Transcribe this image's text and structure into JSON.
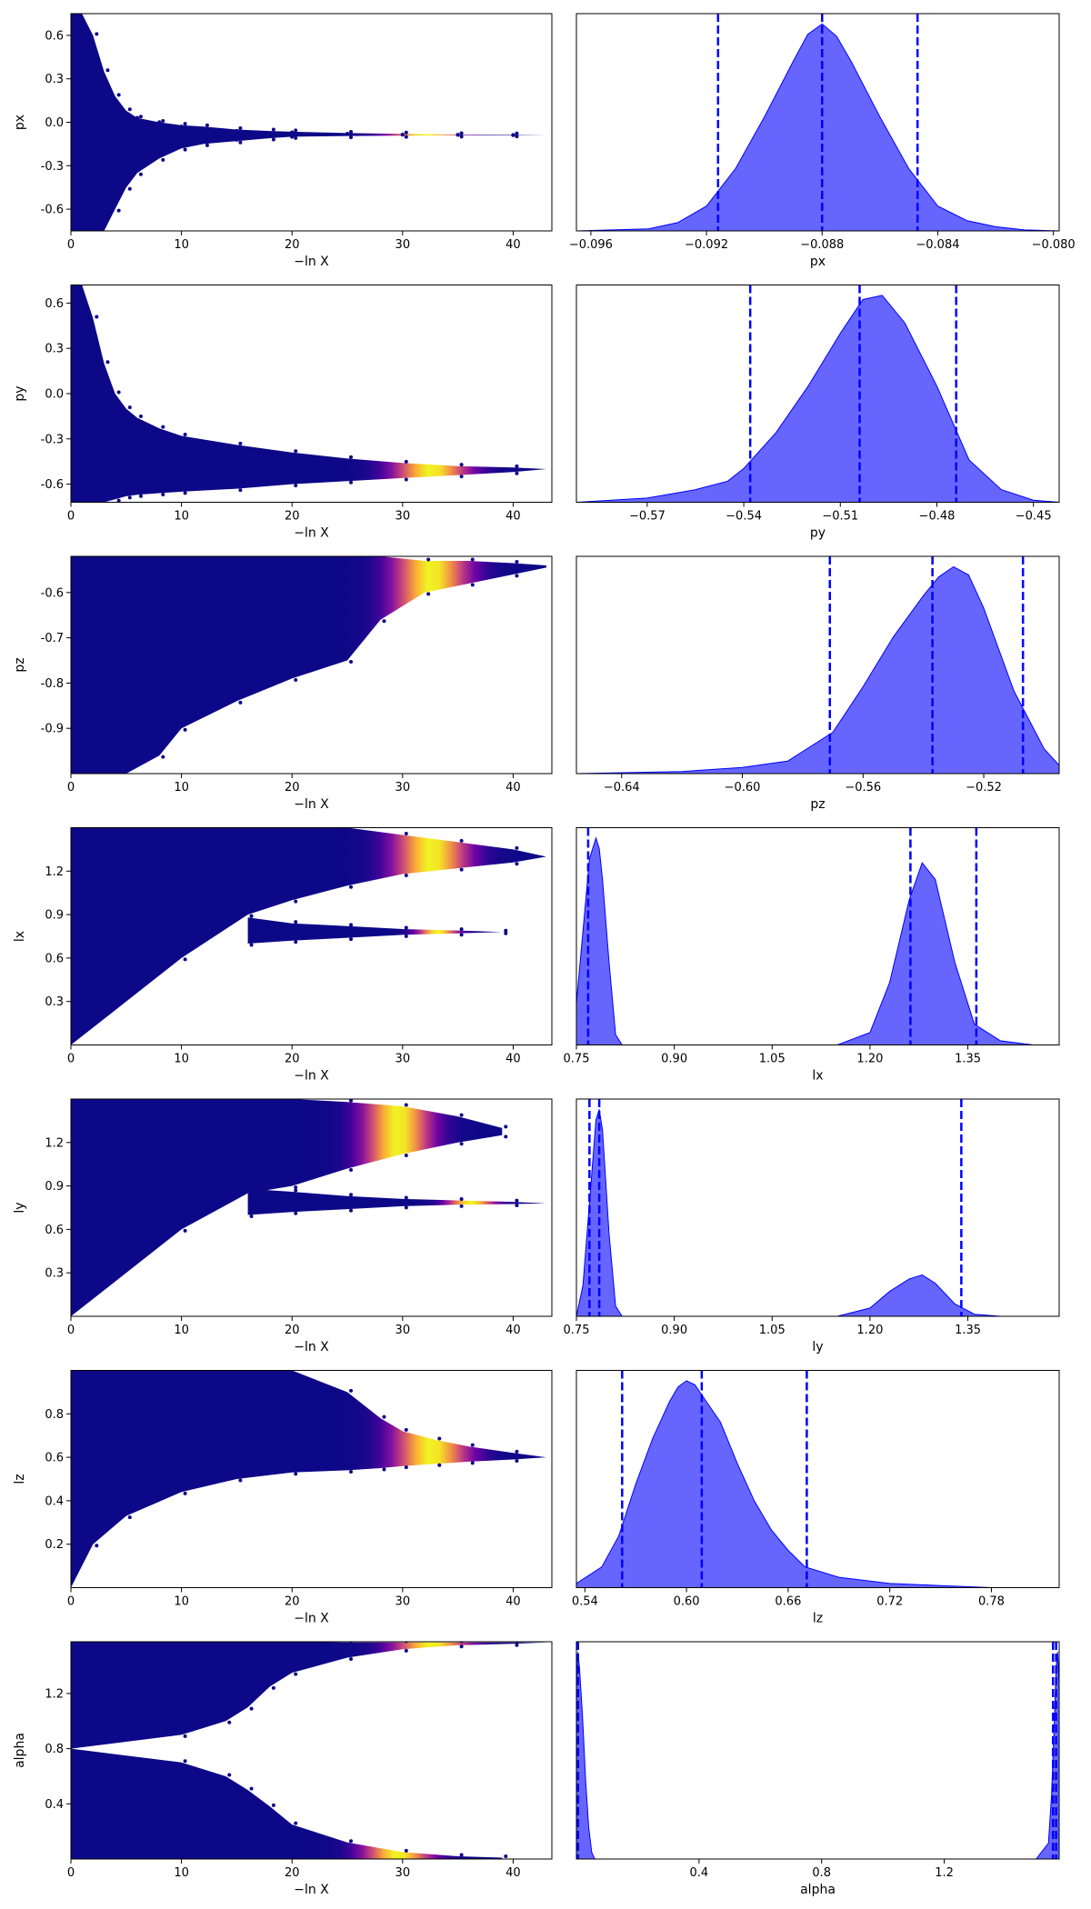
{
  "figure": {
    "type": "nested-sampling trace plot"
  },
  "style": {
    "trace_colormap": [
      "#0d0887",
      "#6a00a8",
      "#b12a90",
      "#e16462",
      "#fca636",
      "#f0f921"
    ],
    "posterior_fill": "#0000ff",
    "posterior_fill_opacity": 0.6,
    "quantile_line_color": "#0000ff",
    "quantile_line_style": "dashed"
  },
  "chart_data": [
    {
      "type": "scatter",
      "parameter": "px",
      "xlabel": "−ln X",
      "ylabel": "px",
      "xlim": [
        0,
        43.5
      ],
      "ylim": [
        -0.75,
        0.75
      ],
      "xticks": [
        "0",
        "10",
        "20",
        "30",
        "40"
      ],
      "yticks": [
        "-0.6",
        "-0.3",
        "0.0",
        "0.3",
        "0.6"
      ],
      "points": [
        [
          0.5,
          0.7
        ],
        [
          1.0,
          0.6
        ],
        [
          2.0,
          0.5
        ],
        [
          3.0,
          0.3
        ],
        [
          4.0,
          0.15
        ],
        [
          5.0,
          0.05
        ],
        [
          6.0,
          0.03
        ],
        [
          8.0,
          0.0
        ],
        [
          10.0,
          -0.03
        ],
        [
          15.0,
          -0.06
        ],
        [
          20.0,
          -0.07
        ],
        [
          25.0,
          -0.08
        ],
        [
          30.0,
          -0.085
        ],
        [
          35.0,
          -0.087
        ],
        [
          40.0,
          -0.088
        ],
        [
          3.0,
          -0.65
        ],
        [
          4.0,
          -0.45
        ],
        [
          6.0,
          -0.3
        ],
        [
          8.0,
          -0.2
        ],
        [
          10.0,
          -0.16
        ],
        [
          15.0,
          -0.12
        ],
        [
          20.0,
          -0.1
        ]
      ],
      "envelope": {
        "x": [
          0,
          1,
          2,
          3,
          4,
          5,
          6,
          8,
          10,
          12,
          15,
          18,
          20,
          25,
          30,
          35,
          40,
          43
        ],
        "upper": [
          0.75,
          0.75,
          0.6,
          0.35,
          0.18,
          0.08,
          0.03,
          0.0,
          -0.02,
          -0.03,
          -0.05,
          -0.06,
          -0.065,
          -0.075,
          -0.08,
          -0.085,
          -0.086,
          -0.088
        ],
        "lower": [
          -0.75,
          -0.75,
          -0.75,
          -0.75,
          -0.6,
          -0.45,
          -0.35,
          -0.25,
          -0.18,
          -0.15,
          -0.13,
          -0.11,
          -0.1,
          -0.095,
          -0.092,
          -0.09,
          -0.089,
          -0.088
        ]
      },
      "weight_peak": 32.5
    },
    {
      "type": "area",
      "parameter": "px",
      "xlabel": "px",
      "xlim": [
        -0.0965,
        -0.0798
      ],
      "xticks": [
        "−0.096",
        "−0.092",
        "−0.088",
        "−0.084",
        "−0.080"
      ],
      "x": [
        -0.0965,
        -0.094,
        -0.093,
        -0.092,
        -0.091,
        -0.09,
        -0.089,
        -0.0885,
        -0.088,
        -0.0875,
        -0.087,
        -0.086,
        -0.085,
        -0.084,
        -0.083,
        -0.082,
        -0.081,
        -0.0798
      ],
      "density": [
        0.0,
        0.01,
        0.04,
        0.12,
        0.3,
        0.55,
        0.82,
        0.95,
        1.0,
        0.94,
        0.82,
        0.55,
        0.3,
        0.12,
        0.05,
        0.02,
        0.005,
        0.0
      ],
      "quantiles": [
        -0.0916,
        -0.088,
        -0.0847
      ]
    },
    {
      "type": "scatter",
      "parameter": "py",
      "xlabel": "−ln X",
      "ylabel": "py",
      "xlim": [
        0,
        43.5
      ],
      "ylim": [
        -0.72,
        0.72
      ],
      "xticks": [
        "0",
        "10",
        "20",
        "30",
        "40"
      ],
      "yticks": [
        "-0.6",
        "-0.3",
        "0.0",
        "0.3",
        "0.6"
      ],
      "envelope": {
        "x": [
          0,
          1,
          2,
          3,
          4,
          5,
          6,
          8,
          10,
          15,
          20,
          25,
          30,
          35,
          40,
          43
        ],
        "upper": [
          0.72,
          0.72,
          0.5,
          0.2,
          0.0,
          -0.1,
          -0.16,
          -0.23,
          -0.28,
          -0.34,
          -0.39,
          -0.43,
          -0.46,
          -0.48,
          -0.49,
          -0.5
        ],
        "lower": [
          -0.72,
          -0.72,
          -0.72,
          -0.72,
          -0.7,
          -0.68,
          -0.67,
          -0.66,
          -0.65,
          -0.63,
          -0.6,
          -0.58,
          -0.56,
          -0.54,
          -0.52,
          -0.5
        ]
      },
      "weight_peak": 33.0
    },
    {
      "type": "area",
      "parameter": "py",
      "xlabel": "py",
      "xlim": [
        -0.592,
        -0.442
      ],
      "xticks": [
        "−0.57",
        "−0.54",
        "−0.51",
        "−0.48",
        "−0.45"
      ],
      "x": [
        -0.592,
        -0.57,
        -0.555,
        -0.545,
        -0.54,
        -0.53,
        -0.52,
        -0.51,
        -0.503,
        -0.497,
        -0.49,
        -0.48,
        -0.47,
        -0.46,
        -0.45,
        -0.442
      ],
      "density": [
        0.0,
        0.02,
        0.06,
        0.1,
        0.16,
        0.33,
        0.55,
        0.8,
        0.96,
        0.98,
        0.85,
        0.55,
        0.2,
        0.06,
        0.01,
        0.0
      ],
      "quantiles": [
        -0.538,
        -0.504,
        -0.474
      ]
    },
    {
      "type": "scatter",
      "parameter": "pz",
      "xlabel": "−ln X",
      "ylabel": "pz",
      "xlim": [
        0,
        43.5
      ],
      "ylim": [
        -1.0,
        -0.52
      ],
      "xticks": [
        "0",
        "10",
        "20",
        "30",
        "40"
      ],
      "yticks": [
        "-0.9",
        "-0.8",
        "-0.7",
        "-0.6"
      ],
      "envelope": {
        "x": [
          0,
          2,
          5,
          8,
          10,
          15,
          20,
          25,
          28,
          32,
          36,
          40,
          43
        ],
        "upper": [
          -0.52,
          -0.52,
          -0.52,
          -0.52,
          -0.52,
          -0.52,
          -0.52,
          -0.52,
          -0.52,
          -0.53,
          -0.53,
          -0.535,
          -0.54
        ],
        "lower": [
          -1.0,
          -1.0,
          -1.0,
          -0.96,
          -0.9,
          -0.84,
          -0.79,
          -0.75,
          -0.66,
          -0.6,
          -0.58,
          -0.56,
          -0.545
        ]
      },
      "weight_peak": 33.0
    },
    {
      "type": "area",
      "parameter": "pz",
      "xlabel": "pz",
      "xlim": [
        -0.655,
        -0.495
      ],
      "xticks": [
        "−0.64",
        "−0.60",
        "−0.56",
        "−0.52"
      ],
      "x": [
        -0.655,
        -0.62,
        -0.6,
        -0.585,
        -0.57,
        -0.56,
        -0.55,
        -0.54,
        -0.535,
        -0.53,
        -0.525,
        -0.52,
        -0.51,
        -0.5,
        -0.495
      ],
      "density": [
        0.0,
        0.01,
        0.03,
        0.06,
        0.2,
        0.42,
        0.66,
        0.86,
        0.95,
        1.0,
        0.96,
        0.8,
        0.4,
        0.12,
        0.04
      ],
      "quantiles": [
        -0.571,
        -0.537,
        -0.507
      ]
    },
    {
      "type": "scatter",
      "parameter": "lx",
      "xlabel": "−ln X",
      "ylabel": "lx",
      "xlim": [
        0,
        43.5
      ],
      "ylim": [
        0.0,
        1.5
      ],
      "xticks": [
        "0",
        "10",
        "20",
        "30",
        "40"
      ],
      "yticks": [
        "0.3",
        "0.6",
        "0.9",
        "1.2"
      ],
      "branches": [
        {
          "name_hint": "upper mode",
          "x": [
            0,
            10,
            16,
            20,
            25,
            30,
            35,
            40,
            43
          ],
          "upper": [
            1.5,
            1.5,
            1.5,
            1.5,
            1.5,
            1.45,
            1.4,
            1.35,
            1.3
          ],
          "lower": [
            0.0,
            0.6,
            0.9,
            1.0,
            1.1,
            1.18,
            1.22,
            1.26,
            1.3
          ],
          "weight_peak": 33.0
        },
        {
          "name_hint": "lower mode",
          "x": [
            16,
            20,
            25,
            30,
            35,
            39
          ],
          "upper": [
            0.88,
            0.84,
            0.82,
            0.8,
            0.79,
            0.78
          ],
          "lower": [
            0.7,
            0.72,
            0.74,
            0.76,
            0.77,
            0.78
          ],
          "weight_peak": 32.5
        }
      ]
    },
    {
      "type": "area",
      "parameter": "lx",
      "xlabel": "lx",
      "xlim": [
        0.75,
        1.49
      ],
      "xticks": [
        "0.75",
        "0.90",
        "1.05",
        "1.20",
        "1.35"
      ],
      "x": [
        0.75,
        0.76,
        0.77,
        0.78,
        0.785,
        0.79,
        0.8,
        0.81,
        0.82,
        1.15,
        1.2,
        1.23,
        1.26,
        1.28,
        1.3,
        1.33,
        1.36,
        1.4,
        1.45,
        1.49
      ],
      "density": [
        0.2,
        0.55,
        0.9,
        1.0,
        0.95,
        0.8,
        0.4,
        0.05,
        0.0,
        0.0,
        0.06,
        0.3,
        0.7,
        0.88,
        0.8,
        0.4,
        0.1,
        0.02,
        0.0,
        0.0
      ],
      "quantiles": [
        0.768,
        1.262,
        1.363
      ]
    },
    {
      "type": "scatter",
      "parameter": "ly",
      "xlabel": "−ln X",
      "ylabel": "ly",
      "xlim": [
        0,
        43.5
      ],
      "ylim": [
        0.0,
        1.5
      ],
      "xticks": [
        "0",
        "10",
        "20",
        "30",
        "40"
      ],
      "yticks": [
        "0.3",
        "0.6",
        "0.9",
        "1.2"
      ],
      "branches": [
        {
          "name_hint": "upper mode",
          "x": [
            0,
            10,
            16,
            20,
            25,
            30,
            35,
            39
          ],
          "upper": [
            1.5,
            1.5,
            1.5,
            1.5,
            1.48,
            1.45,
            1.38,
            1.3
          ],
          "lower": [
            0.0,
            0.6,
            0.85,
            0.9,
            1.02,
            1.12,
            1.2,
            1.25
          ],
          "weight_peak": 33.0
        },
        {
          "name_hint": "lower mode",
          "x": [
            16,
            20,
            25,
            30,
            35,
            40,
            43
          ],
          "upper": [
            0.88,
            0.86,
            0.83,
            0.81,
            0.8,
            0.79,
            0.78
          ],
          "lower": [
            0.7,
            0.72,
            0.74,
            0.76,
            0.77,
            0.775,
            0.78
          ],
          "weight_peak": 32.5
        }
      ]
    },
    {
      "type": "area",
      "parameter": "ly",
      "xlabel": "ly",
      "xlim": [
        0.75,
        1.49
      ],
      "xticks": [
        "0.75",
        "0.90",
        "1.05",
        "1.20",
        "1.35"
      ],
      "x": [
        0.75,
        0.76,
        0.77,
        0.78,
        0.785,
        0.79,
        0.8,
        0.81,
        0.82,
        1.15,
        1.2,
        1.23,
        1.26,
        1.28,
        1.3,
        1.33,
        1.36,
        1.4,
        1.49
      ],
      "density": [
        0.0,
        0.15,
        0.55,
        0.95,
        1.0,
        0.9,
        0.4,
        0.05,
        0.0,
        0.0,
        0.04,
        0.12,
        0.18,
        0.2,
        0.16,
        0.06,
        0.01,
        0.0,
        0.0
      ],
      "quantiles": [
        0.77,
        0.785,
        1.34
      ]
    },
    {
      "type": "scatter",
      "parameter": "lz",
      "xlabel": "−ln X",
      "ylabel": "lz",
      "xlim": [
        0,
        43.5
      ],
      "ylim": [
        0.0,
        1.0
      ],
      "xticks": [
        "0",
        "10",
        "20",
        "30",
        "40"
      ],
      "yticks": [
        "0.2",
        "0.4",
        "0.6",
        "0.8"
      ],
      "envelope": {
        "x": [
          0,
          2,
          5,
          10,
          15,
          20,
          25,
          28,
          30,
          33,
          36,
          40,
          43
        ],
        "upper": [
          1.0,
          1.0,
          1.0,
          1.0,
          1.0,
          1.0,
          0.9,
          0.78,
          0.72,
          0.68,
          0.65,
          0.62,
          0.6
        ],
        "lower": [
          0.0,
          0.2,
          0.33,
          0.44,
          0.5,
          0.53,
          0.54,
          0.55,
          0.56,
          0.57,
          0.58,
          0.59,
          0.6
        ]
      },
      "weight_peak": 33.0
    },
    {
      "type": "area",
      "parameter": "lz",
      "xlabel": "lz",
      "xlim": [
        0.535,
        0.82
      ],
      "xticks": [
        "0.54",
        "0.60",
        "0.66",
        "0.72",
        "0.78"
      ],
      "x": [
        0.535,
        0.55,
        0.56,
        0.57,
        0.58,
        0.59,
        0.595,
        0.6,
        0.605,
        0.61,
        0.62,
        0.63,
        0.64,
        0.65,
        0.66,
        0.67,
        0.69,
        0.72,
        0.75,
        0.78,
        0.82
      ],
      "density": [
        0.02,
        0.1,
        0.25,
        0.5,
        0.72,
        0.9,
        0.97,
        1.0,
        0.98,
        0.92,
        0.8,
        0.6,
        0.42,
        0.28,
        0.18,
        0.1,
        0.05,
        0.02,
        0.01,
        0.0,
        0.0
      ],
      "quantiles": [
        0.562,
        0.609,
        0.671
      ]
    },
    {
      "type": "scatter",
      "parameter": "alpha",
      "xlabel": "−ln X",
      "ylabel": "alpha",
      "xlim": [
        0,
        43.5
      ],
      "ylim": [
        0.0,
        1.575
      ],
      "xticks": [
        "0",
        "10",
        "20",
        "30",
        "40"
      ],
      "yticks": [
        "0.4",
        "0.8",
        "1.2"
      ],
      "branches": [
        {
          "name_hint": "upper mode",
          "x": [
            0,
            10,
            14,
            16,
            18,
            20,
            25,
            30,
            35,
            40,
            43
          ],
          "upper": [
            1.575,
            1.575,
            1.575,
            1.575,
            1.575,
            1.575,
            1.57,
            1.57,
            1.57,
            1.57,
            1.57
          ],
          "lower": [
            0.8,
            0.9,
            1.0,
            1.1,
            1.25,
            1.35,
            1.46,
            1.52,
            1.55,
            1.56,
            1.57
          ],
          "weight_peak": 33.0
        },
        {
          "name_hint": "lower mode",
          "x": [
            0,
            10,
            14,
            16,
            18,
            20,
            25,
            30,
            35,
            39
          ],
          "upper": [
            0.8,
            0.7,
            0.6,
            0.5,
            0.38,
            0.25,
            0.12,
            0.05,
            0.02,
            0.01
          ],
          "lower": [
            0.0,
            0.0,
            0.0,
            0.0,
            0.0,
            0.0,
            0.0,
            0.0,
            0.0,
            0.0
          ],
          "weight_peak": 33.0
        }
      ]
    },
    {
      "type": "area",
      "parameter": "alpha",
      "xlabel": "alpha",
      "xlim": [
        0.0,
        1.575
      ],
      "xticks": [
        "0.4",
        "0.8",
        "1.2"
      ],
      "x": [
        0.0,
        0.005,
        0.01,
        0.02,
        0.03,
        0.04,
        0.05,
        0.06,
        1.5,
        1.54,
        1.55,
        1.56,
        1.565,
        1.57,
        1.575
      ],
      "density": [
        0.55,
        0.65,
        0.6,
        0.45,
        0.25,
        0.1,
        0.02,
        0.0,
        0.0,
        0.05,
        0.2,
        0.45,
        0.6,
        0.65,
        0.55
      ],
      "quantiles": [
        0.005,
        1.555,
        1.565
      ]
    }
  ]
}
